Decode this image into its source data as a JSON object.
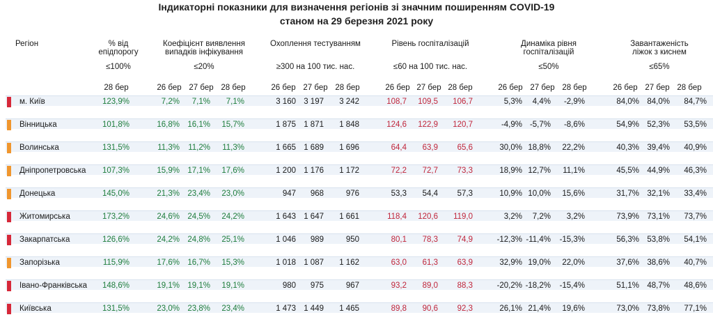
{
  "title_line1": "Індикаторні показники для визначення регіонів зі значним поширенням COVID-19",
  "title_line2": "станом на 29 березня 2021 року",
  "columns": {
    "region": "Регіон",
    "epi_line1": "% від",
    "epi_line2": "епідпорогу",
    "epi_threshold": "≤100%",
    "coef_line1": "Коефіцієнт виявлення",
    "coef_line2": "випадків інфікування",
    "coef_threshold": "≤20%",
    "test_line1": "Охоплення тестуванням",
    "test_threshold": "≥300 на 100 тис. нас.",
    "hosp_line1": "Рівень госпіталізацій",
    "hosp_threshold": "≤60 на 100 тис. нас.",
    "dyn_line1": "Динаміка рівня",
    "dyn_line2": "госпіталізацій",
    "dyn_threshold": "≤50%",
    "oxy_line1": "Завантаженість",
    "oxy_line2": "ліжок з киснем",
    "oxy_threshold": "≤65%"
  },
  "dates": {
    "d26": "26 бер",
    "d27": "27 бер",
    "d28": "28 бер"
  },
  "colors": {
    "red": "#d62839",
    "orange": "#f0962e",
    "green": "#1e7d3c",
    "bad": "#c0263b"
  },
  "rows": [
    {
      "region": "м. Київ",
      "flag": "red",
      "epi": "123,9%",
      "coef": [
        "7,2%",
        "7,1%",
        "7,1%"
      ],
      "test": [
        "3 160",
        "3 197",
        "3 242"
      ],
      "hosp": [
        "108,7",
        "109,5",
        "106,7"
      ],
      "dyn": [
        "5,3%",
        "4,4%",
        "-2,9%"
      ],
      "oxy": [
        "84,0%",
        "84,0%",
        "84,7%"
      ]
    },
    {
      "region": "Вінницька",
      "flag": "orange",
      "epi": "101,8%",
      "coef": [
        "16,8%",
        "16,1%",
        "15,7%"
      ],
      "test": [
        "1 875",
        "1 871",
        "1 848"
      ],
      "hosp": [
        "124,6",
        "122,9",
        "120,7"
      ],
      "dyn": [
        "-4,9%",
        "-5,7%",
        "-8,6%"
      ],
      "oxy": [
        "54,9%",
        "52,3%",
        "53,5%"
      ]
    },
    {
      "region": "Волинська",
      "flag": "orange",
      "epi": "131,5%",
      "coef": [
        "11,3%",
        "11,2%",
        "11,3%"
      ],
      "test": [
        "1 665",
        "1 689",
        "1 696"
      ],
      "hosp": [
        "64,4",
        "63,9",
        "65,6"
      ],
      "dyn": [
        "30,0%",
        "18,8%",
        "22,2%"
      ],
      "oxy": [
        "40,3%",
        "39,4%",
        "40,9%"
      ]
    },
    {
      "region": "Дніпропетровська",
      "flag": "orange",
      "epi": "107,3%",
      "coef": [
        "15,9%",
        "17,1%",
        "17,6%"
      ],
      "test": [
        "1 200",
        "1 176",
        "1 172"
      ],
      "hosp": [
        "72,2",
        "72,7",
        "73,3"
      ],
      "dyn": [
        "18,9%",
        "12,7%",
        "11,1%"
      ],
      "oxy": [
        "45,5%",
        "44,9%",
        "46,3%"
      ]
    },
    {
      "region": "Донецька",
      "flag": "orange",
      "epi": "145,0%",
      "coef": [
        "21,3%",
        "23,4%",
        "23,0%"
      ],
      "test": [
        "947",
        "968",
        "976"
      ],
      "hosp": [
        "53,3",
        "54,4",
        "57,3"
      ],
      "dyn": [
        "10,9%",
        "10,0%",
        "15,6%"
      ],
      "oxy": [
        "31,7%",
        "32,1%",
        "33,4%"
      ]
    },
    {
      "region": "Житомирська",
      "flag": "red",
      "epi": "173,2%",
      "coef": [
        "24,6%",
        "24,5%",
        "24,2%"
      ],
      "test": [
        "1 643",
        "1 647",
        "1 661"
      ],
      "hosp": [
        "118,4",
        "120,6",
        "119,0"
      ],
      "dyn": [
        "3,2%",
        "7,2%",
        "3,2%"
      ],
      "oxy": [
        "73,9%",
        "73,1%",
        "73,7%"
      ]
    },
    {
      "region": "Закарпатська",
      "flag": "red",
      "epi": "126,6%",
      "coef": [
        "24,2%",
        "24,8%",
        "25,1%"
      ],
      "test": [
        "1 046",
        "989",
        "950"
      ],
      "hosp": [
        "80,1",
        "78,3",
        "74,9"
      ],
      "dyn": [
        "-12,3%",
        "-11,4%",
        "-15,3%"
      ],
      "oxy": [
        "56,3%",
        "53,8%",
        "54,1%"
      ]
    },
    {
      "region": "Запорізька",
      "flag": "orange",
      "epi": "115,9%",
      "coef": [
        "17,6%",
        "16,7%",
        "15,3%"
      ],
      "test": [
        "1 018",
        "1 087",
        "1 162"
      ],
      "hosp": [
        "63,0",
        "61,3",
        "63,9"
      ],
      "dyn": [
        "32,9%",
        "19,0%",
        "22,0%"
      ],
      "oxy": [
        "37,6%",
        "38,6%",
        "40,7%"
      ]
    },
    {
      "region": "Івано-Франківська",
      "flag": "red",
      "epi": "148,6%",
      "coef": [
        "19,1%",
        "19,1%",
        "19,1%"
      ],
      "test": [
        "980",
        "975",
        "967"
      ],
      "hosp": [
        "93,2",
        "89,0",
        "88,3"
      ],
      "dyn": [
        "-20,2%",
        "-18,2%",
        "-15,4%"
      ],
      "oxy": [
        "51,1%",
        "48,7%",
        "48,6%"
      ]
    },
    {
      "region": "Київська",
      "flag": "red",
      "epi": "131,5%",
      "coef": [
        "23,0%",
        "23,8%",
        "23,4%"
      ],
      "test": [
        "1 473",
        "1 449",
        "1 465"
      ],
      "hosp": [
        "89,8",
        "90,6",
        "92,3"
      ],
      "dyn": [
        "26,1%",
        "21,4%",
        "19,6%"
      ],
      "oxy": [
        "73,0%",
        "73,8%",
        "77,1%"
      ]
    }
  ]
}
